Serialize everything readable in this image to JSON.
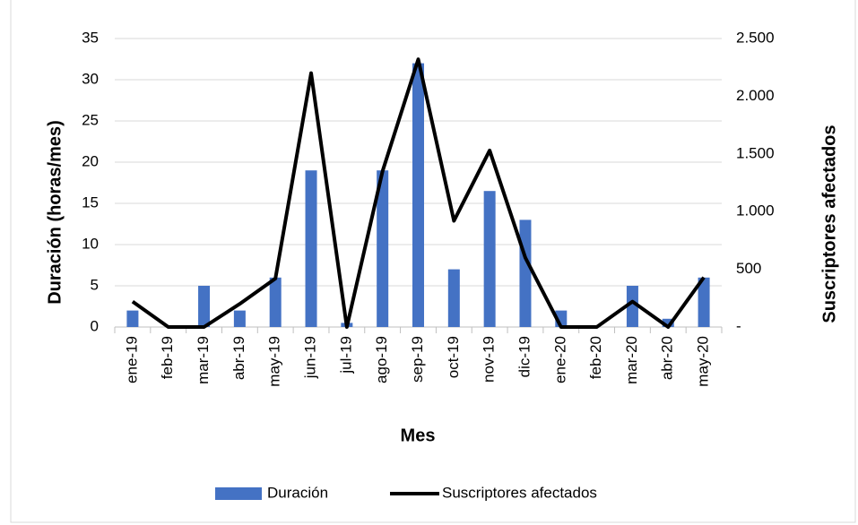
{
  "chart_data": {
    "type": "bar-line",
    "categories": [
      "ene-19",
      "feb-19",
      "mar-19",
      "abr-19",
      "may-19",
      "jun-19",
      "jul-19",
      "ago-19",
      "sep-19",
      "oct-19",
      "nov-19",
      "dic-19",
      "ene-20",
      "feb-20",
      "mar-20",
      "abr-20",
      "may-20"
    ],
    "series": [
      {
        "name": "Duración",
        "type": "bar",
        "color": "#4472c4",
        "values": [
          2,
          0,
          5,
          2,
          6,
          19,
          0.5,
          19,
          32,
          7,
          16.5,
          13,
          2,
          0,
          5,
          1,
          6
        ]
      },
      {
        "name": "Suscriptores afectados",
        "type": "line",
        "axis": "y2",
        "color": "#000000",
        "values": [
          220,
          0,
          0,
          200,
          420,
          2200,
          0,
          1350,
          2320,
          920,
          1530,
          600,
          0,
          0,
          220,
          0,
          430
        ]
      }
    ],
    "xlabel": "Mes",
    "ylabel": "Duración (horas/mes)",
    "y2label": "Suscriptores afectados",
    "ylim": [
      0,
      35
    ],
    "yticks": [
      0,
      5,
      10,
      15,
      20,
      25,
      30,
      35
    ],
    "y2lim": [
      0,
      2500
    ],
    "y2ticks": [
      {
        "value": 0,
        "label": "-"
      },
      500,
      {
        "value": 1000,
        "label": "1.000"
      },
      {
        "value": 1500,
        "label": "1.500"
      },
      {
        "value": 2000,
        "label": "2.000"
      },
      {
        "value": 2500,
        "label": "2.500"
      }
    ],
    "grid": true,
    "legend": "bottom"
  }
}
